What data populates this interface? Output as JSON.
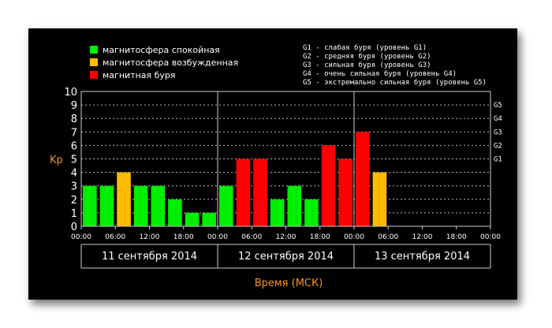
{
  "chart_data": {
    "type": "bar",
    "ylabel": "Kp",
    "xlabel": "Время (МСК)",
    "ylim": [
      0,
      10
    ],
    "yticks": [
      0,
      1,
      2,
      3,
      4,
      5,
      6,
      7,
      8,
      9,
      10
    ],
    "right_axis": [
      {
        "label": "G1",
        "value": 5
      },
      {
        "label": "G2",
        "value": 6
      },
      {
        "label": "G3",
        "value": 7
      },
      {
        "label": "G4",
        "value": 8
      },
      {
        "label": "G5",
        "value": 9
      }
    ],
    "x_tick_labels": [
      "00:00",
      "06:00",
      "12:00",
      "18:00",
      "00:00",
      "06:00",
      "12:00",
      "18:00",
      "00:00",
      "06:00",
      "12:00",
      "18:00",
      "00:00"
    ],
    "days": [
      "11 сентября 2014",
      "12 сентября 2014",
      "13 сентября 2014"
    ],
    "grid": true,
    "colors": {
      "quiet": "#00ee00",
      "active": "#ffbb00",
      "storm": "#ff0000"
    },
    "values": [
      3,
      3,
      4,
      3,
      3,
      2,
      1,
      1,
      3,
      5,
      5,
      2,
      3,
      2,
      6,
      5,
      7,
      4
    ],
    "levels": [
      "quiet",
      "quiet",
      "active",
      "quiet",
      "quiet",
      "quiet",
      "quiet",
      "quiet",
      "quiet",
      "storm",
      "storm",
      "quiet",
      "quiet",
      "quiet",
      "storm",
      "storm",
      "storm",
      "active"
    ],
    "total_slots": 24
  },
  "legend": {
    "items": [
      {
        "label": "магнитосфера спокойная",
        "color": "#00ee00"
      },
      {
        "label": "магнитосфера возбужденная",
        "color": "#ffbb00"
      },
      {
        "label": "магнитная буря",
        "color": "#ff0000"
      }
    ],
    "g_scale": [
      "G1 - слабая буря (уровень G1)",
      "G2 - средняя буря (уровень G2)",
      "G3 - сильная буря (уровень G3)",
      "G4 - очень сильная буря (уровень G4)",
      "G5 - экстремально сильная буря (уровень G5)"
    ]
  }
}
